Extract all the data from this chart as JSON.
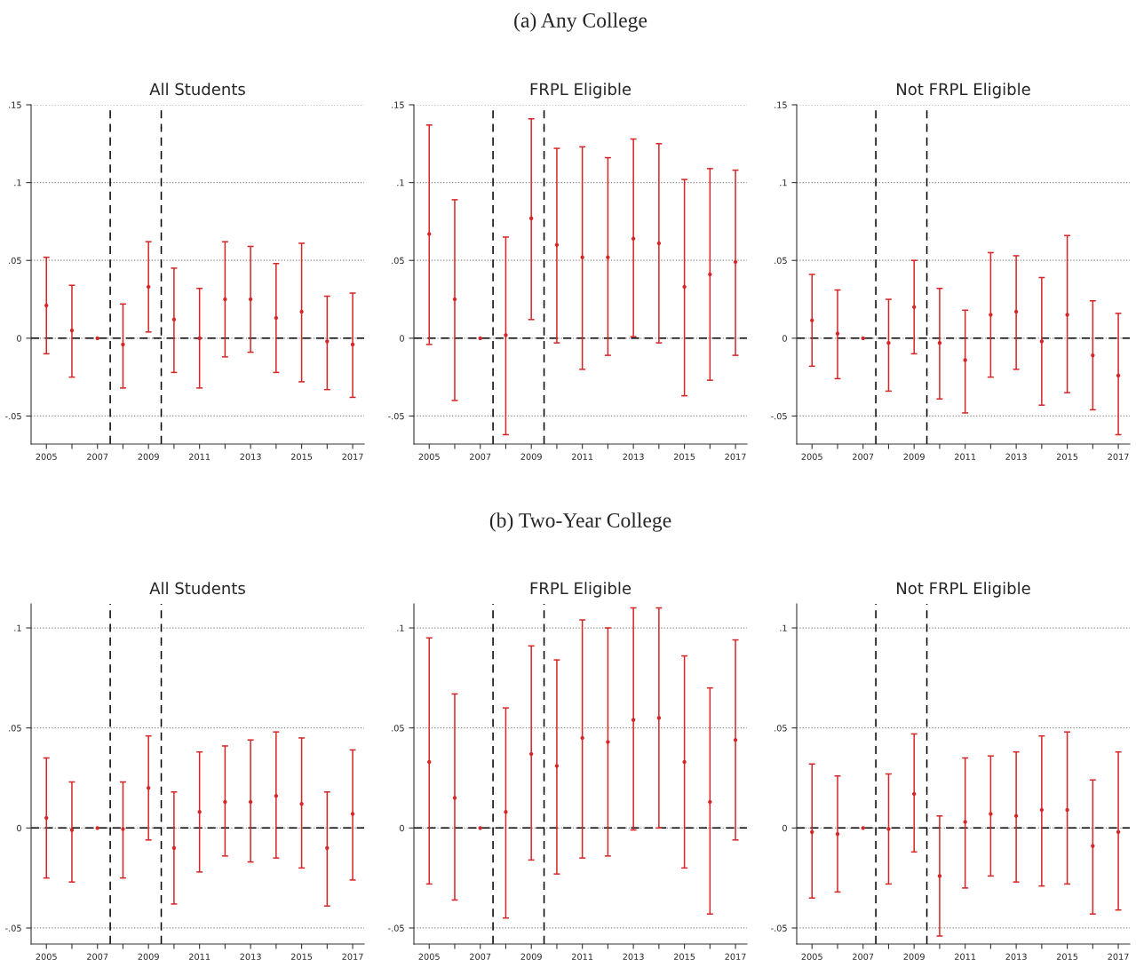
{
  "chart_data": [
    {
      "type": "scatter",
      "title": "All Students",
      "x": [
        2005,
        2006,
        2007,
        2008,
        2009,
        2010,
        2011,
        2012,
        2013,
        2014,
        2015,
        2016,
        2017
      ],
      "xlim": [
        2004.4,
        2017.45
      ],
      "xticks": [
        2005,
        {
          "value": 2006,
          "label": null
        },
        2007,
        {
          "value": 2008,
          "label": null
        },
        2009,
        {
          "value": 2010,
          "label": null
        },
        2011,
        {
          "value": 2012,
          "label": null
        },
        2013,
        {
          "value": 2014,
          "label": null
        },
        2015,
        {
          "value": 2016,
          "label": null
        },
        2017
      ],
      "ylim": [
        -0.068,
        0.15
      ],
      "yticks": [
        {
          "value": -0.05,
          "label": "-.05"
        },
        0,
        {
          "value": 0.05,
          "label": ".05"
        },
        {
          "value": 0.1,
          "label": ".1"
        },
        {
          "value": 0.15,
          "label": ".15"
        }
      ],
      "grid": "y",
      "marker": "circle",
      "series": [
        {
          "color": "#d62728",
          "values": [
            0.021,
            0.005,
            0,
            -0.004,
            0.033,
            0.012,
            0,
            0.025,
            0.025,
            0.013,
            0.017,
            -0.002,
            -0.004
          ],
          "errors": [
            [
              -0.01,
              0.052
            ],
            [
              -0.025,
              0.034
            ],
            null,
            [
              -0.032,
              0.022
            ],
            [
              0.004,
              0.062
            ],
            [
              -0.022,
              0.045
            ],
            [
              -0.032,
              0.032
            ],
            [
              -0.012,
              0.062
            ],
            [
              -0.009,
              0.059
            ],
            [
              -0.022,
              0.048
            ],
            [
              -0.028,
              0.061
            ],
            [
              -0.033,
              0.027
            ],
            [
              -0.038,
              0.029
            ]
          ]
        }
      ],
      "ref_lines": [
        {
          "axis": "y",
          "value": 0,
          "color": "#000000",
          "line_style": "dashed"
        },
        {
          "axis": "x",
          "value": 2007.5,
          "color": "#000000",
          "line_style": "dashed"
        },
        {
          "axis": "x",
          "value": 2009.5,
          "color": "#000000",
          "line_style": "dashed"
        }
      ]
    },
    {
      "type": "scatter",
      "subtitle": "(a) Any College",
      "title": "FRPL Eligible",
      "x": [
        2005,
        2006,
        2007,
        2008,
        2009,
        2010,
        2011,
        2012,
        2013,
        2014,
        2015,
        2016,
        2017
      ],
      "xlim": [
        2004.4,
        2017.45
      ],
      "xticks": [
        2005,
        {
          "value": 2006,
          "label": null
        },
        2007,
        {
          "value": 2008,
          "label": null
        },
        2009,
        {
          "value": 2010,
          "label": null
        },
        2011,
        {
          "value": 2012,
          "label": null
        },
        2013,
        {
          "value": 2014,
          "label": null
        },
        2015,
        {
          "value": 2016,
          "label": null
        },
        2017
      ],
      "ylim": [
        -0.068,
        0.15
      ],
      "yticks": [
        {
          "value": -0.05,
          "label": "-.05"
        },
        0,
        {
          "value": 0.05,
          "label": ".05"
        },
        {
          "value": 0.1,
          "label": ".1"
        },
        {
          "value": 0.15,
          "label": ".15"
        }
      ],
      "grid": "y",
      "marker": "circle",
      "series": [
        {
          "color": "#d62728",
          "values": [
            0.067,
            0.025,
            0,
            0.002,
            0.077,
            0.06,
            0.052,
            0.052,
            0.064,
            0.061,
            0.033,
            0.041,
            0.049
          ],
          "errors": [
            [
              -0.004,
              0.137
            ],
            [
              -0.04,
              0.089
            ],
            null,
            [
              -0.062,
              0.065
            ],
            [
              0.012,
              0.141
            ],
            [
              -0.003,
              0.122
            ],
            [
              -0.02,
              0.123
            ],
            [
              -0.011,
              0.116
            ],
            [
              0.001,
              0.128
            ],
            [
              -0.003,
              0.125
            ],
            [
              -0.037,
              0.102
            ],
            [
              -0.027,
              0.109
            ],
            [
              -0.011,
              0.108
            ]
          ]
        }
      ],
      "ref_lines": [
        {
          "axis": "y",
          "value": 0,
          "color": "#000000",
          "line_style": "dashed"
        },
        {
          "axis": "x",
          "value": 2007.5,
          "color": "#000000",
          "line_style": "dashed"
        },
        {
          "axis": "x",
          "value": 2009.5,
          "color": "#000000",
          "line_style": "dashed"
        }
      ]
    },
    {
      "type": "scatter",
      "title": "Not FRPL Eligible",
      "x": [
        2005,
        2006,
        2007,
        2008,
        2009,
        2010,
        2011,
        2012,
        2013,
        2014,
        2015,
        2016,
        2017
      ],
      "xlim": [
        2004.4,
        2017.45
      ],
      "xticks": [
        2005,
        {
          "value": 2006,
          "label": null
        },
        2007,
        {
          "value": 2008,
          "label": null
        },
        2009,
        {
          "value": 2010,
          "label": null
        },
        2011,
        {
          "value": 2012,
          "label": null
        },
        2013,
        {
          "value": 2014,
          "label": null
        },
        2015,
        {
          "value": 2016,
          "label": null
        },
        2017
      ],
      "ylim": [
        -0.068,
        0.15
      ],
      "yticks": [
        {
          "value": -0.05,
          "label": "-.05"
        },
        0,
        {
          "value": 0.05,
          "label": ".05"
        },
        {
          "value": 0.1,
          "label": ".1"
        },
        {
          "value": 0.15,
          "label": ".15"
        }
      ],
      "grid": "y",
      "marker": "circle",
      "series": [
        {
          "color": "#d62728",
          "values": [
            0.0115,
            0.003,
            0,
            -0.003,
            0.02,
            -0.003,
            -0.014,
            0.015,
            0.017,
            -0.002,
            0.015,
            -0.011,
            -0.024
          ],
          "errors": [
            [
              -0.018,
              0.041
            ],
            [
              -0.026,
              0.031
            ],
            null,
            [
              -0.034,
              0.025
            ],
            [
              -0.01,
              0.05
            ],
            [
              -0.039,
              0.032
            ],
            [
              -0.048,
              0.018
            ],
            [
              -0.025,
              0.055
            ],
            [
              -0.02,
              0.053
            ],
            [
              -0.043,
              0.039
            ],
            [
              -0.035,
              0.066
            ],
            [
              -0.046,
              0.024
            ],
            [
              -0.062,
              0.016
            ]
          ]
        }
      ],
      "ref_lines": [
        {
          "axis": "y",
          "value": 0,
          "color": "#000000",
          "line_style": "dashed"
        },
        {
          "axis": "x",
          "value": 2007.5,
          "color": "#000000",
          "line_style": "dashed"
        },
        {
          "axis": "x",
          "value": 2009.5,
          "color": "#000000",
          "line_style": "dashed"
        }
      ]
    },
    {
      "type": "scatter",
      "title": "All Students",
      "x": [
        2005,
        2006,
        2007,
        2008,
        2009,
        2010,
        2011,
        2012,
        2013,
        2014,
        2015,
        2016,
        2017
      ],
      "xlim": [
        2004.4,
        2017.45
      ],
      "xticks": [
        2005,
        {
          "value": 2006,
          "label": null
        },
        2007,
        {
          "value": 2008,
          "label": null
        },
        2009,
        {
          "value": 2010,
          "label": null
        },
        2011,
        {
          "value": 2012,
          "label": null
        },
        2013,
        {
          "value": 2014,
          "label": null
        },
        2015,
        {
          "value": 2016,
          "label": null
        },
        2017
      ],
      "ylim": [
        -0.058,
        0.112
      ],
      "yticks": [
        {
          "value": -0.05,
          "label": "-.05"
        },
        0,
        {
          "value": 0.05,
          "label": ".05"
        },
        {
          "value": 0.1,
          "label": ".1"
        }
      ],
      "grid": "y",
      "marker": "circle",
      "series": [
        {
          "color": "#d62728",
          "values": [
            0.005,
            -0.001,
            0,
            -0.0005,
            0.02,
            -0.01,
            0.008,
            0.013,
            0.013,
            0.016,
            0.012,
            -0.01,
            0.007
          ],
          "errors": [
            [
              -0.025,
              0.035
            ],
            [
              -0.027,
              0.023
            ],
            null,
            [
              -0.025,
              0.023
            ],
            [
              -0.006,
              0.046
            ],
            [
              -0.038,
              0.018
            ],
            [
              -0.022,
              0.038
            ],
            [
              -0.014,
              0.041
            ],
            [
              -0.017,
              0.044
            ],
            [
              -0.015,
              0.048
            ],
            [
              -0.02,
              0.045
            ],
            [
              -0.039,
              0.018
            ],
            [
              -0.026,
              0.039
            ]
          ]
        }
      ],
      "ref_lines": [
        {
          "axis": "y",
          "value": 0,
          "color": "#000000",
          "line_style": "dashed"
        },
        {
          "axis": "x",
          "value": 2007.5,
          "color": "#000000",
          "line_style": "dashed"
        },
        {
          "axis": "x",
          "value": 2009.5,
          "color": "#000000",
          "line_style": "dashed"
        }
      ]
    },
    {
      "type": "scatter",
      "subtitle": "(b) Two-Year College",
      "title": "FRPL Eligible",
      "x": [
        2005,
        2006,
        2007,
        2008,
        2009,
        2010,
        2011,
        2012,
        2013,
        2014,
        2015,
        2016,
        2017
      ],
      "xlim": [
        2004.4,
        2017.45
      ],
      "xticks": [
        2005,
        {
          "value": 2006,
          "label": null
        },
        2007,
        {
          "value": 2008,
          "label": null
        },
        2009,
        {
          "value": 2010,
          "label": null
        },
        2011,
        {
          "value": 2012,
          "label": null
        },
        2013,
        {
          "value": 2014,
          "label": null
        },
        2015,
        {
          "value": 2016,
          "label": null
        },
        2017
      ],
      "ylim": [
        -0.058,
        0.112
      ],
      "yticks": [
        {
          "value": -0.05,
          "label": "-.05"
        },
        0,
        {
          "value": 0.05,
          "label": ".05"
        },
        {
          "value": 0.1,
          "label": ".1"
        }
      ],
      "grid": "y",
      "marker": "circle",
      "series": [
        {
          "color": "#d62728",
          "values": [
            0.033,
            0.015,
            0,
            0.008,
            0.037,
            0.031,
            0.045,
            0.043,
            0.054,
            0.055,
            0.033,
            0.013,
            0.044
          ],
          "errors": [
            [
              -0.028,
              0.095
            ],
            [
              -0.036,
              0.067
            ],
            null,
            [
              -0.045,
              0.06
            ],
            [
              -0.016,
              0.091
            ],
            [
              -0.023,
              0.084
            ],
            [
              -0.015,
              0.104
            ],
            [
              -0.014,
              0.1
            ],
            [
              -0.001,
              0.11
            ],
            [
              0,
              0.11
            ],
            [
              -0.02,
              0.086
            ],
            [
              -0.043,
              0.07
            ],
            [
              -0.006,
              0.094
            ]
          ]
        }
      ],
      "ref_lines": [
        {
          "axis": "y",
          "value": 0,
          "color": "#000000",
          "line_style": "dashed"
        },
        {
          "axis": "x",
          "value": 2007.5,
          "color": "#000000",
          "line_style": "dashed"
        },
        {
          "axis": "x",
          "value": 2009.5,
          "color": "#000000",
          "line_style": "dashed"
        }
      ]
    },
    {
      "type": "scatter",
      "title": "Not FRPL Eligible",
      "x": [
        2005,
        2006,
        2007,
        2008,
        2009,
        2010,
        2011,
        2012,
        2013,
        2014,
        2015,
        2016,
        2017
      ],
      "xlim": [
        2004.4,
        2017.45
      ],
      "xticks": [
        2005,
        {
          "value": 2006,
          "label": null
        },
        2007,
        {
          "value": 2008,
          "label": null
        },
        2009,
        {
          "value": 2010,
          "label": null
        },
        2011,
        {
          "value": 2012,
          "label": null
        },
        2013,
        {
          "value": 2014,
          "label": null
        },
        2015,
        {
          "value": 2016,
          "label": null
        },
        2017
      ],
      "ylim": [
        -0.058,
        0.112
      ],
      "yticks": [
        {
          "value": -0.05,
          "label": "-.05"
        },
        0,
        {
          "value": 0.05,
          "label": ".05"
        },
        {
          "value": 0.1,
          "label": ".1"
        }
      ],
      "grid": "y",
      "marker": "circle",
      "series": [
        {
          "color": "#d62728",
          "values": [
            -0.002,
            -0.003,
            0,
            -0.0005,
            0.017,
            -0.024,
            0.003,
            0.007,
            0.006,
            0.009,
            0.009,
            -0.009,
            -0.002
          ],
          "errors": [
            [
              -0.035,
              0.032
            ],
            [
              -0.032,
              0.026
            ],
            null,
            [
              -0.028,
              0.027
            ],
            [
              -0.012,
              0.047
            ],
            [
              -0.054,
              0.006
            ],
            [
              -0.03,
              0.035
            ],
            [
              -0.024,
              0.036
            ],
            [
              -0.027,
              0.038
            ],
            [
              -0.029,
              0.046
            ],
            [
              -0.028,
              0.048
            ],
            [
              -0.043,
              0.024
            ],
            [
              -0.041,
              0.038
            ]
          ]
        }
      ],
      "ref_lines": [
        {
          "axis": "y",
          "value": 0,
          "color": "#000000",
          "line_style": "dashed"
        },
        {
          "axis": "x",
          "value": 2007.5,
          "color": "#000000",
          "line_style": "dashed"
        },
        {
          "axis": "x",
          "value": 2009.5,
          "color": "#000000",
          "line_style": "dashed"
        }
      ]
    }
  ]
}
